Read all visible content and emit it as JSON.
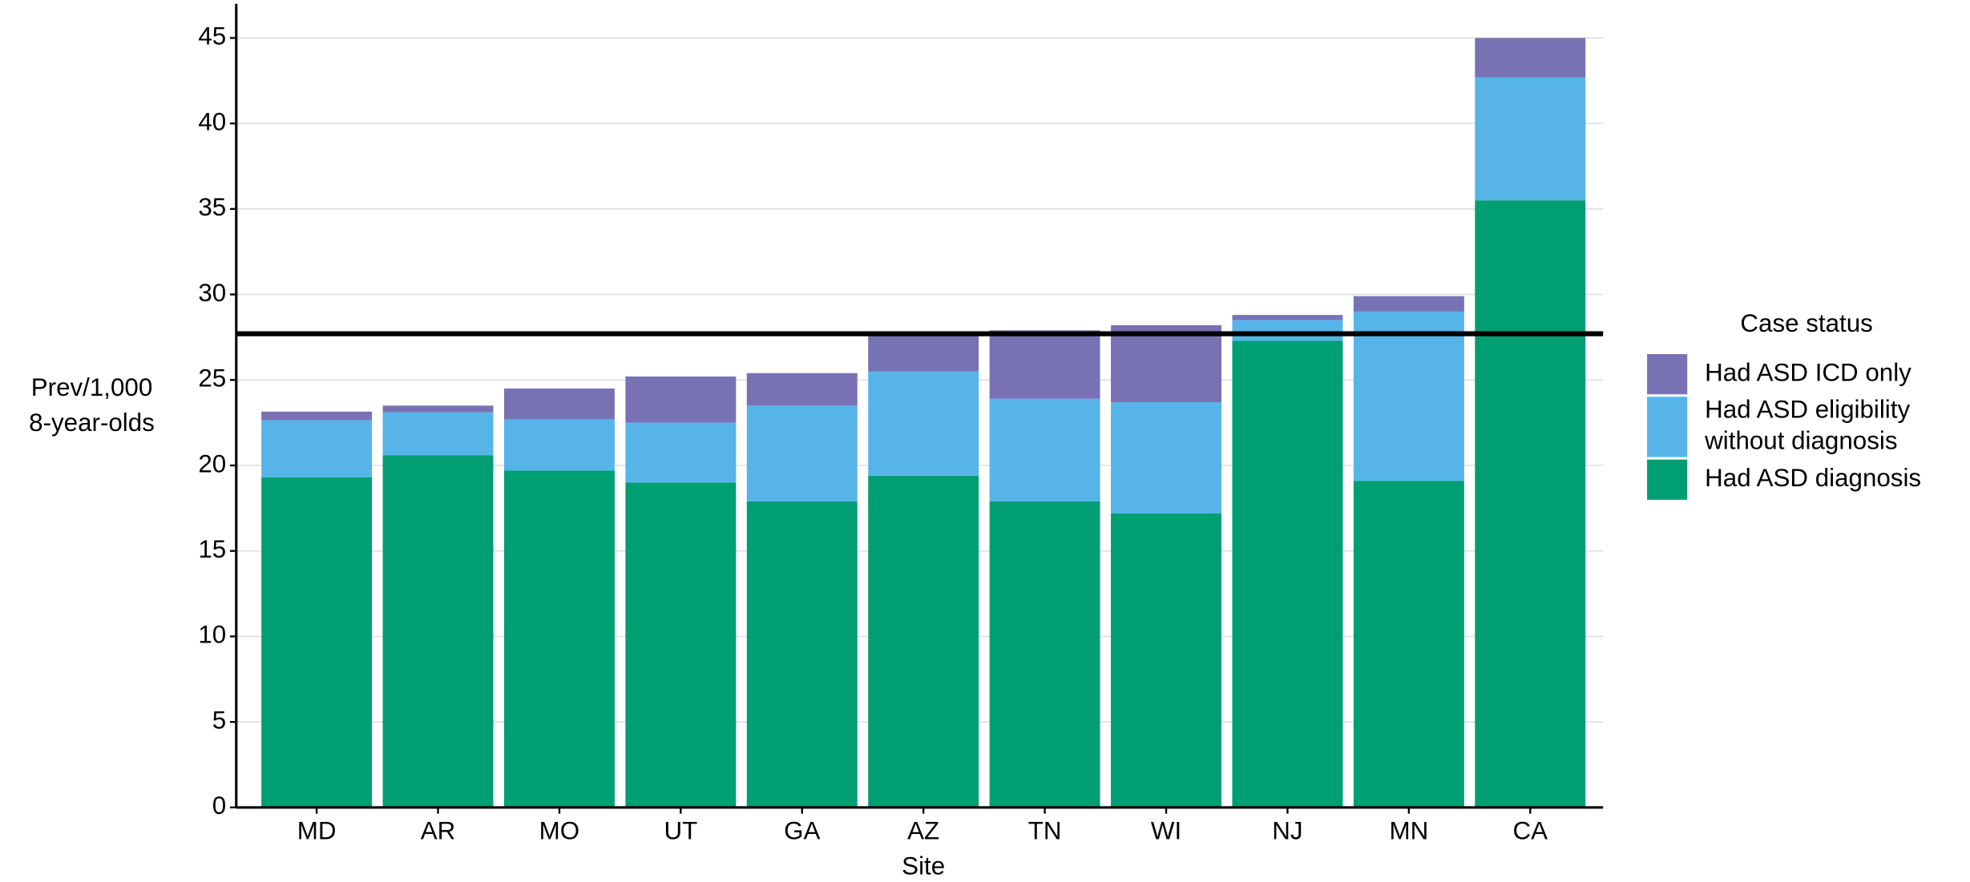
{
  "chart_data": {
    "type": "stacked_bar",
    "x_label": "Site",
    "y_label": [
      "Prev/1,000",
      "8-year-olds"
    ],
    "legend_title": "Case status",
    "legend": "right",
    "categories": [
      "MD",
      "AR",
      "MO",
      "UT",
      "GA",
      "AZ",
      "TN",
      "WI",
      "NJ",
      "MN",
      "CA"
    ],
    "series": [
      {
        "name": "Had ASD diagnosis",
        "color": "#009e73",
        "values": [
          19.3,
          20.6,
          19.7,
          19.0,
          17.9,
          19.4,
          17.9,
          17.2,
          27.3,
          19.1,
          35.5
        ]
      },
      {
        "name": "Had ASD eligibility without diagnosis",
        "color": "#56b4e9",
        "values": [
          3.35,
          2.5,
          3.0,
          3.5,
          5.6,
          6.1,
          6.0,
          6.5,
          1.2,
          9.9,
          7.2
        ]
      },
      {
        "name": "Had ASD ICD only",
        "color": "#7872b4",
        "values": [
          0.5,
          0.4,
          1.8,
          2.7,
          1.9,
          2.1,
          4.0,
          4.5,
          0.3,
          0.9,
          2.3
        ]
      }
    ],
    "reference_line": 27.7,
    "ylim": [
      0,
      47
    ],
    "yticks": [
      0,
      5,
      10,
      15,
      20,
      25,
      30,
      35,
      40,
      45
    ],
    "grid": true
  }
}
